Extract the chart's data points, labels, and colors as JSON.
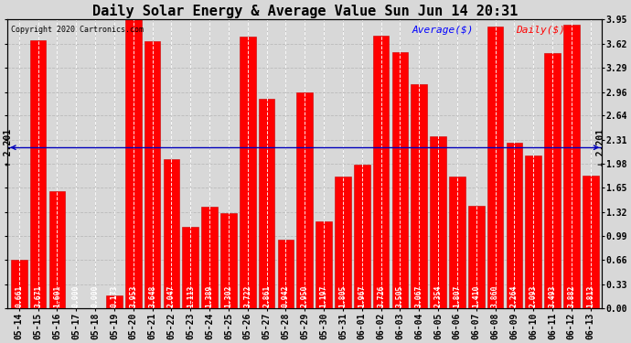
{
  "title": "Daily Solar Energy & Average Value Sun Jun 14 20:31",
  "copyright": "Copyright 2020 Cartronics.com",
  "average_label": "Average($)",
  "daily_label": "Daily($)",
  "average_value": 2.201,
  "categories": [
    "05-14",
    "05-15",
    "05-16",
    "05-17",
    "05-18",
    "05-19",
    "05-20",
    "05-21",
    "05-22",
    "05-23",
    "05-24",
    "05-25",
    "05-26",
    "05-27",
    "05-28",
    "05-29",
    "05-30",
    "05-31",
    "06-01",
    "06-02",
    "06-03",
    "06-04",
    "06-05",
    "06-06",
    "06-07",
    "06-08",
    "06-09",
    "06-10",
    "06-11",
    "06-12",
    "06-13"
  ],
  "values": [
    0.661,
    3.671,
    1.601,
    0.0,
    0.0,
    0.173,
    3.953,
    3.648,
    2.047,
    1.113,
    1.389,
    1.302,
    3.722,
    2.861,
    0.942,
    2.95,
    1.197,
    1.805,
    1.967,
    3.726,
    3.505,
    3.067,
    2.354,
    1.807,
    1.41,
    3.86,
    2.264,
    2.093,
    3.493,
    3.882,
    1.813
  ],
  "bar_color": "#ff0000",
  "bar_edge_color": "#cc0000",
  "average_line_color": "#0000bb",
  "ylim": [
    0.0,
    3.95
  ],
  "yticks": [
    0.0,
    0.33,
    0.66,
    0.99,
    1.32,
    1.65,
    1.98,
    2.31,
    2.64,
    2.96,
    3.29,
    3.62,
    3.95
  ],
  "background_color": "#d8d8d8",
  "grid_color": "#bbbbbb",
  "title_fontsize": 11,
  "tick_fontsize": 7,
  "value_fontsize": 5.8,
  "avg_annotation_fontsize": 7,
  "copyright_fontsize": 6,
  "legend_fontsize": 8
}
